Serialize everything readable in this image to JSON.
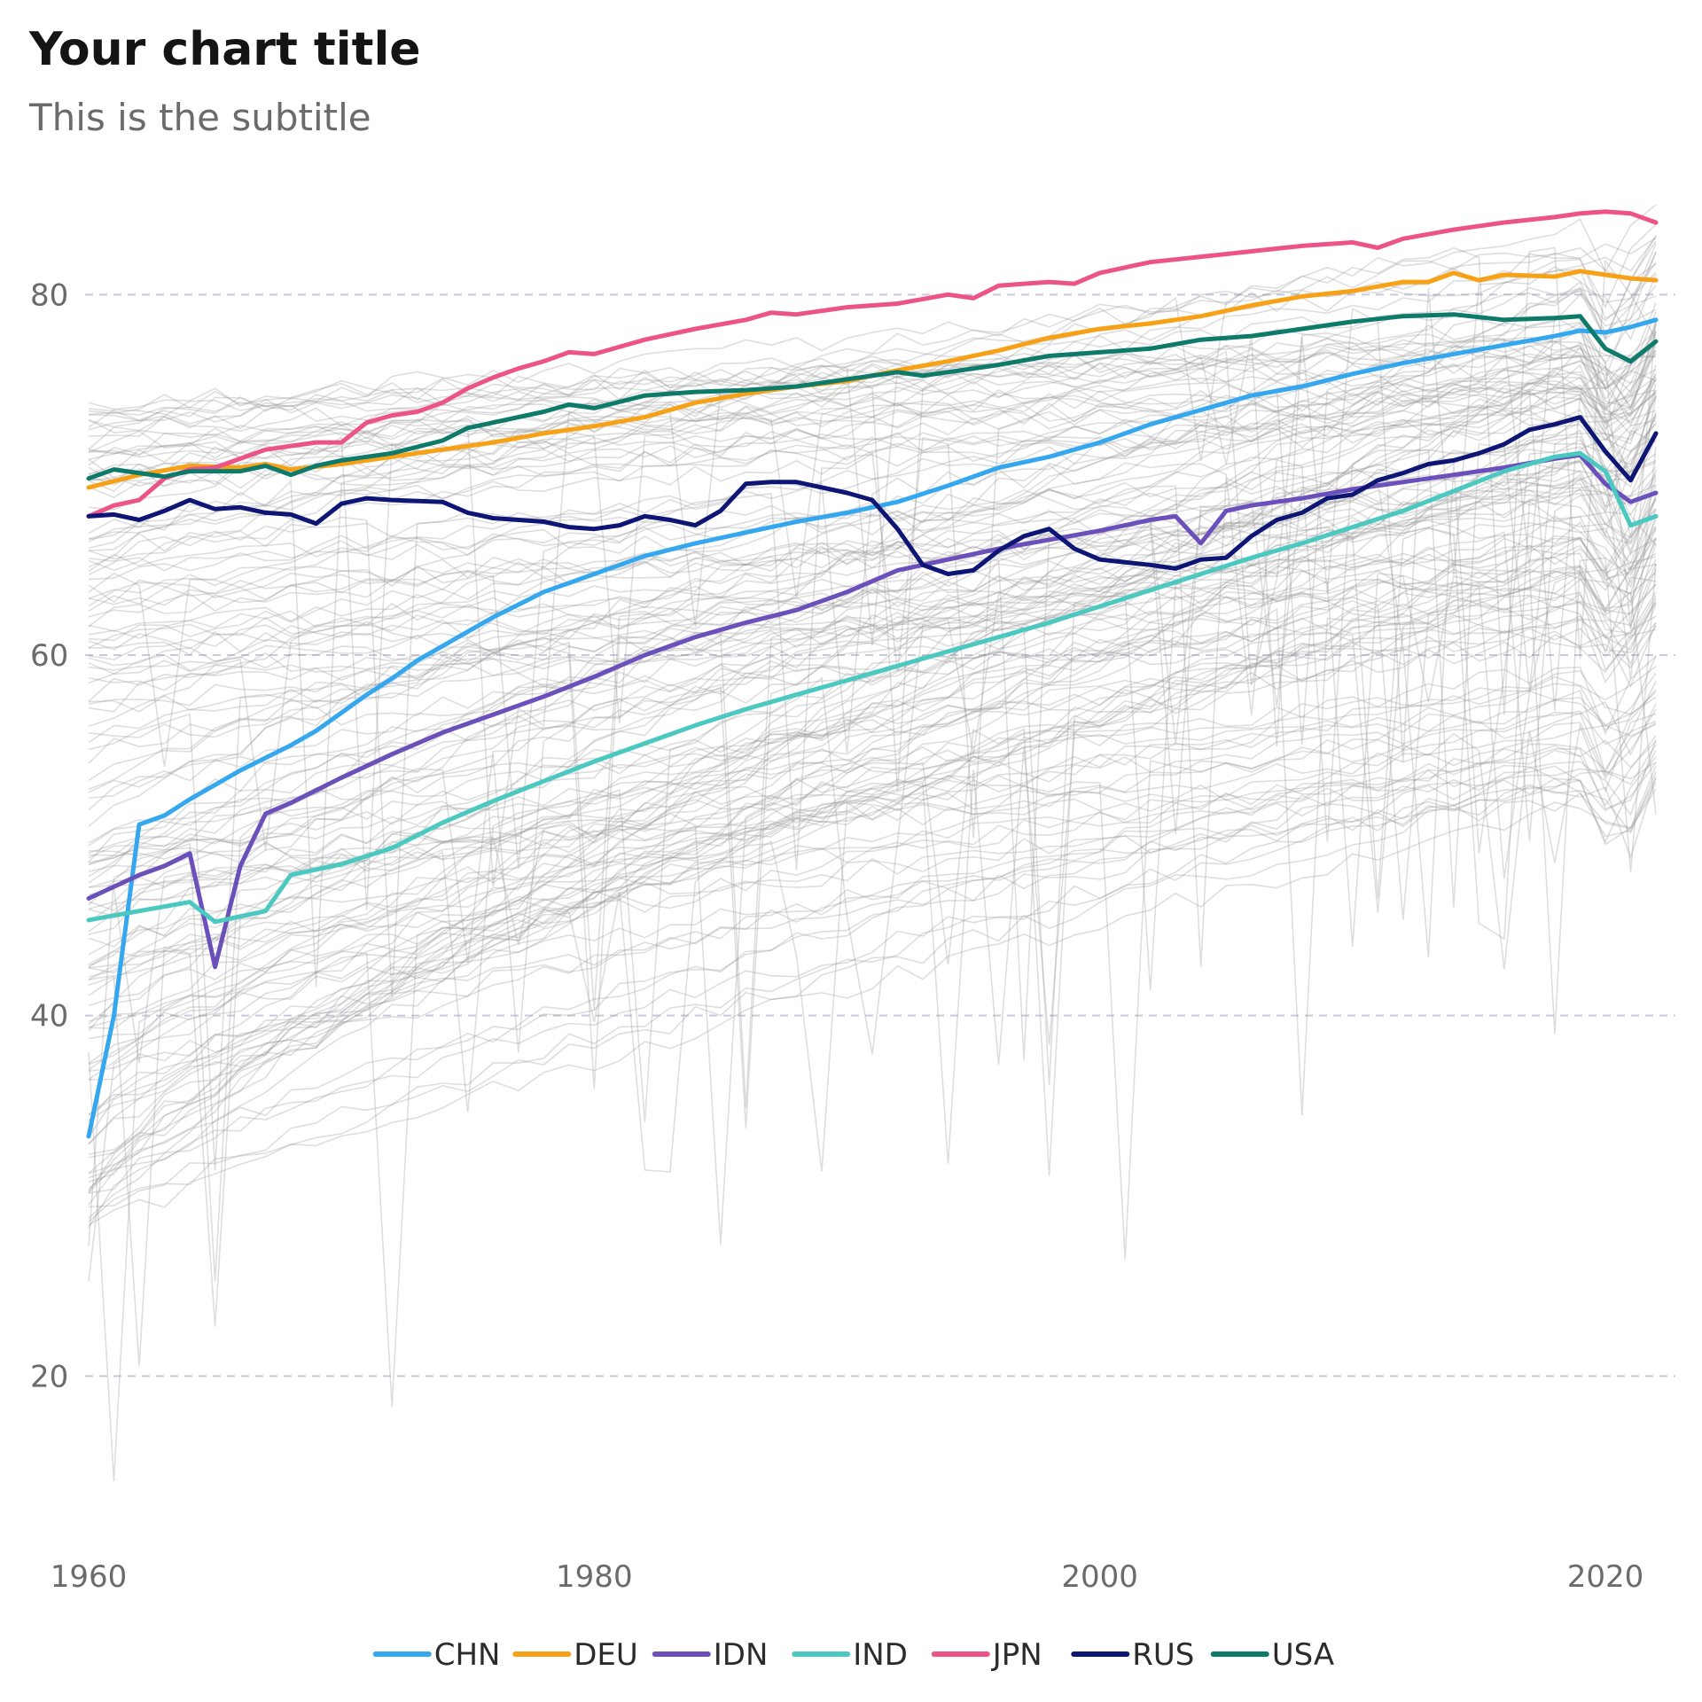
{
  "chart_data": {
    "type": "line",
    "title": "Your chart title",
    "subtitle": "This is the subtitle",
    "xlabel": "",
    "ylabel": "",
    "xlim": [
      1960,
      2022
    ],
    "ylim": [
      12,
      87
    ],
    "x_ticks": [
      1960,
      1980,
      2000,
      2020
    ],
    "y_ticks": [
      20,
      40,
      60,
      80
    ],
    "grid": "horizontal dashed",
    "legend_position": "bottom",
    "background_series_color": "#999999",
    "series": [
      {
        "name": "CHN",
        "color": "#35A7EE",
        "points": [
          [
            1960,
            33.3
          ],
          [
            1961,
            40.0
          ],
          [
            1962,
            50.6
          ],
          [
            1963,
            51.1
          ],
          [
            1964,
            52.0
          ],
          [
            1965,
            52.8
          ],
          [
            1966,
            53.6
          ],
          [
            1967,
            54.3
          ],
          [
            1968,
            55.0
          ],
          [
            1969,
            55.8
          ],
          [
            1970,
            56.8
          ],
          [
            1971,
            57.8
          ],
          [
            1972,
            58.7
          ],
          [
            1973,
            59.7
          ],
          [
            1974,
            60.5
          ],
          [
            1975,
            61.3
          ],
          [
            1976,
            62.1
          ],
          [
            1977,
            62.8
          ],
          [
            1978,
            63.5
          ],
          [
            1979,
            64.0
          ],
          [
            1980,
            64.5
          ],
          [
            1982,
            65.5
          ],
          [
            1984,
            66.2
          ],
          [
            1986,
            66.8
          ],
          [
            1988,
            67.4
          ],
          [
            1990,
            67.9
          ],
          [
            1992,
            68.5
          ],
          [
            1994,
            69.4
          ],
          [
            1996,
            70.4
          ],
          [
            1998,
            71.0
          ],
          [
            2000,
            71.8
          ],
          [
            2002,
            72.8
          ],
          [
            2004,
            73.6
          ],
          [
            2006,
            74.4
          ],
          [
            2008,
            74.9
          ],
          [
            2010,
            75.6
          ],
          [
            2012,
            76.2
          ],
          [
            2014,
            76.7
          ],
          [
            2016,
            77.2
          ],
          [
            2018,
            77.7
          ],
          [
            2019,
            78.0
          ],
          [
            2020,
            77.9
          ],
          [
            2021,
            78.2
          ],
          [
            2022,
            78.6
          ]
        ]
      },
      {
        "name": "DEU",
        "color": "#F7A116",
        "points": [
          [
            1960,
            69.3
          ],
          [
            1962,
            70.0
          ],
          [
            1964,
            70.5
          ],
          [
            1966,
            70.4
          ],
          [
            1967,
            70.6
          ],
          [
            1968,
            70.3
          ],
          [
            1970,
            70.6
          ],
          [
            1972,
            71.0
          ],
          [
            1974,
            71.4
          ],
          [
            1976,
            71.8
          ],
          [
            1978,
            72.3
          ],
          [
            1980,
            72.7
          ],
          [
            1982,
            73.2
          ],
          [
            1984,
            74.0
          ],
          [
            1986,
            74.5
          ],
          [
            1988,
            74.9
          ],
          [
            1990,
            75.2
          ],
          [
            1992,
            75.8
          ],
          [
            1994,
            76.3
          ],
          [
            1996,
            76.9
          ],
          [
            1998,
            77.6
          ],
          [
            2000,
            78.1
          ],
          [
            2002,
            78.4
          ],
          [
            2004,
            78.8
          ],
          [
            2006,
            79.4
          ],
          [
            2008,
            79.9
          ],
          [
            2010,
            80.2
          ],
          [
            2012,
            80.7
          ],
          [
            2013,
            80.7
          ],
          [
            2014,
            81.2
          ],
          [
            2015,
            80.8
          ],
          [
            2016,
            81.1
          ],
          [
            2018,
            81.0
          ],
          [
            2019,
            81.3
          ],
          [
            2020,
            81.1
          ],
          [
            2021,
            80.9
          ],
          [
            2022,
            80.8
          ]
        ]
      },
      {
        "name": "IDN",
        "color": "#6B4FBB",
        "points": [
          [
            1960,
            46.5
          ],
          [
            1962,
            47.8
          ],
          [
            1963,
            48.3
          ],
          [
            1964,
            49.0
          ],
          [
            1965,
            42.7
          ],
          [
            1966,
            48.3
          ],
          [
            1967,
            51.2
          ],
          [
            1968,
            51.8
          ],
          [
            1970,
            53.2
          ],
          [
            1972,
            54.5
          ],
          [
            1974,
            55.7
          ],
          [
            1976,
            56.7
          ],
          [
            1978,
            57.7
          ],
          [
            1980,
            58.8
          ],
          [
            1982,
            60.0
          ],
          [
            1984,
            61.0
          ],
          [
            1986,
            61.8
          ],
          [
            1988,
            62.5
          ],
          [
            1990,
            63.5
          ],
          [
            1992,
            64.7
          ],
          [
            1994,
            65.3
          ],
          [
            1996,
            65.9
          ],
          [
            1998,
            66.4
          ],
          [
            2000,
            66.9
          ],
          [
            2002,
            67.5
          ],
          [
            2003,
            67.7
          ],
          [
            2004,
            66.2
          ],
          [
            2005,
            68.0
          ],
          [
            2006,
            68.3
          ],
          [
            2008,
            68.7
          ],
          [
            2010,
            69.2
          ],
          [
            2012,
            69.6
          ],
          [
            2014,
            70.0
          ],
          [
            2016,
            70.4
          ],
          [
            2018,
            70.9
          ],
          [
            2019,
            71.1
          ],
          [
            2020,
            69.5
          ],
          [
            2021,
            68.5
          ],
          [
            2022,
            69.0
          ]
        ]
      },
      {
        "name": "IND",
        "color": "#4BC8C0",
        "points": [
          [
            1960,
            45.3
          ],
          [
            1962,
            45.8
          ],
          [
            1964,
            46.3
          ],
          [
            1965,
            45.2
          ],
          [
            1967,
            45.8
          ],
          [
            1968,
            47.8
          ],
          [
            1970,
            48.4
          ],
          [
            1972,
            49.3
          ],
          [
            1974,
            50.7
          ],
          [
            1976,
            51.9
          ],
          [
            1978,
            53.0
          ],
          [
            1980,
            54.1
          ],
          [
            1982,
            55.1
          ],
          [
            1984,
            56.1
          ],
          [
            1986,
            57.0
          ],
          [
            1988,
            57.8
          ],
          [
            1990,
            58.6
          ],
          [
            1992,
            59.4
          ],
          [
            1994,
            60.2
          ],
          [
            1996,
            61.0
          ],
          [
            1998,
            61.8
          ],
          [
            2000,
            62.7
          ],
          [
            2002,
            63.6
          ],
          [
            2004,
            64.5
          ],
          [
            2006,
            65.4
          ],
          [
            2008,
            66.2
          ],
          [
            2010,
            67.1
          ],
          [
            2012,
            68.0
          ],
          [
            2014,
            69.1
          ],
          [
            2016,
            70.2
          ],
          [
            2018,
            71.0
          ],
          [
            2019,
            71.2
          ],
          [
            2020,
            70.2
          ],
          [
            2021,
            67.2
          ],
          [
            2022,
            67.7
          ]
        ]
      },
      {
        "name": "JPN",
        "color": "#EC5488",
        "points": [
          [
            1960,
            67.7
          ],
          [
            1961,
            68.3
          ],
          [
            1962,
            68.6
          ],
          [
            1963,
            69.8
          ],
          [
            1964,
            70.3
          ],
          [
            1965,
            70.4
          ],
          [
            1966,
            70.9
          ],
          [
            1967,
            71.4
          ],
          [
            1968,
            71.6
          ],
          [
            1969,
            71.8
          ],
          [
            1970,
            71.8
          ],
          [
            1971,
            72.9
          ],
          [
            1972,
            73.3
          ],
          [
            1973,
            73.5
          ],
          [
            1974,
            74.0
          ],
          [
            1975,
            74.8
          ],
          [
            1976,
            75.4
          ],
          [
            1977,
            75.9
          ],
          [
            1978,
            76.3
          ],
          [
            1979,
            76.8
          ],
          [
            1980,
            76.7
          ],
          [
            1982,
            77.5
          ],
          [
            1984,
            78.1
          ],
          [
            1986,
            78.6
          ],
          [
            1987,
            79.0
          ],
          [
            1988,
            78.9
          ],
          [
            1990,
            79.3
          ],
          [
            1992,
            79.5
          ],
          [
            1994,
            80.0
          ],
          [
            1995,
            79.8
          ],
          [
            1996,
            80.5
          ],
          [
            1998,
            80.7
          ],
          [
            1999,
            80.6
          ],
          [
            2000,
            81.2
          ],
          [
            2002,
            81.8
          ],
          [
            2004,
            82.1
          ],
          [
            2006,
            82.4
          ],
          [
            2008,
            82.7
          ],
          [
            2010,
            82.9
          ],
          [
            2011,
            82.6
          ],
          [
            2012,
            83.1
          ],
          [
            2014,
            83.6
          ],
          [
            2016,
            84.0
          ],
          [
            2018,
            84.3
          ],
          [
            2019,
            84.5
          ],
          [
            2020,
            84.6
          ],
          [
            2021,
            84.5
          ],
          [
            2022,
            84.0
          ]
        ]
      },
      {
        "name": "RUS",
        "color": "#0D1575",
        "points": [
          [
            1960,
            67.7
          ],
          [
            1961,
            67.8
          ],
          [
            1962,
            67.5
          ],
          [
            1963,
            68.0
          ],
          [
            1964,
            68.6
          ],
          [
            1965,
            68.1
          ],
          [
            1966,
            68.2
          ],
          [
            1967,
            67.9
          ],
          [
            1968,
            67.8
          ],
          [
            1969,
            67.3
          ],
          [
            1970,
            68.4
          ],
          [
            1971,
            68.7
          ],
          [
            1972,
            68.6
          ],
          [
            1974,
            68.5
          ],
          [
            1975,
            67.9
          ],
          [
            1976,
            67.6
          ],
          [
            1978,
            67.4
          ],
          [
            1979,
            67.1
          ],
          [
            1980,
            67.0
          ],
          [
            1981,
            67.2
          ],
          [
            1982,
            67.7
          ],
          [
            1983,
            67.5
          ],
          [
            1984,
            67.2
          ],
          [
            1985,
            68.0
          ],
          [
            1986,
            69.5
          ],
          [
            1987,
            69.6
          ],
          [
            1988,
            69.6
          ],
          [
            1990,
            69.0
          ],
          [
            1991,
            68.6
          ],
          [
            1992,
            67.0
          ],
          [
            1993,
            65.0
          ],
          [
            1994,
            64.5
          ],
          [
            1995,
            64.7
          ],
          [
            1996,
            65.8
          ],
          [
            1997,
            66.6
          ],
          [
            1998,
            67.0
          ],
          [
            1999,
            65.9
          ],
          [
            2000,
            65.3
          ],
          [
            2002,
            65.0
          ],
          [
            2003,
            64.8
          ],
          [
            2004,
            65.3
          ],
          [
            2005,
            65.4
          ],
          [
            2006,
            66.6
          ],
          [
            2007,
            67.5
          ],
          [
            2008,
            67.9
          ],
          [
            2009,
            68.7
          ],
          [
            2010,
            68.9
          ],
          [
            2011,
            69.7
          ],
          [
            2012,
            70.1
          ],
          [
            2013,
            70.6
          ],
          [
            2014,
            70.8
          ],
          [
            2015,
            71.2
          ],
          [
            2016,
            71.7
          ],
          [
            2017,
            72.5
          ],
          [
            2018,
            72.8
          ],
          [
            2019,
            73.2
          ],
          [
            2020,
            71.3
          ],
          [
            2021,
            69.7
          ],
          [
            2022,
            72.3
          ]
        ]
      },
      {
        "name": "USA",
        "color": "#0E7A6A",
        "points": [
          [
            1960,
            69.8
          ],
          [
            1961,
            70.3
          ],
          [
            1962,
            70.1
          ],
          [
            1963,
            69.9
          ],
          [
            1964,
            70.2
          ],
          [
            1965,
            70.2
          ],
          [
            1966,
            70.2
          ],
          [
            1967,
            70.5
          ],
          [
            1968,
            70.0
          ],
          [
            1969,
            70.5
          ],
          [
            1970,
            70.8
          ],
          [
            1972,
            71.2
          ],
          [
            1974,
            71.9
          ],
          [
            1975,
            72.6
          ],
          [
            1976,
            72.9
          ],
          [
            1978,
            73.5
          ],
          [
            1979,
            73.9
          ],
          [
            1980,
            73.7
          ],
          [
            1982,
            74.4
          ],
          [
            1984,
            74.6
          ],
          [
            1986,
            74.7
          ],
          [
            1988,
            74.9
          ],
          [
            1990,
            75.3
          ],
          [
            1992,
            75.7
          ],
          [
            1993,
            75.5
          ],
          [
            1994,
            75.7
          ],
          [
            1996,
            76.1
          ],
          [
            1998,
            76.6
          ],
          [
            2000,
            76.8
          ],
          [
            2002,
            77.0
          ],
          [
            2004,
            77.5
          ],
          [
            2006,
            77.7
          ],
          [
            2008,
            78.1
          ],
          [
            2010,
            78.5
          ],
          [
            2012,
            78.8
          ],
          [
            2014,
            78.9
          ],
          [
            2016,
            78.6
          ],
          [
            2018,
            78.7
          ],
          [
            2019,
            78.8
          ],
          [
            2020,
            77.0
          ],
          [
            2021,
            76.3
          ],
          [
            2022,
            77.4
          ]
        ]
      }
    ]
  }
}
